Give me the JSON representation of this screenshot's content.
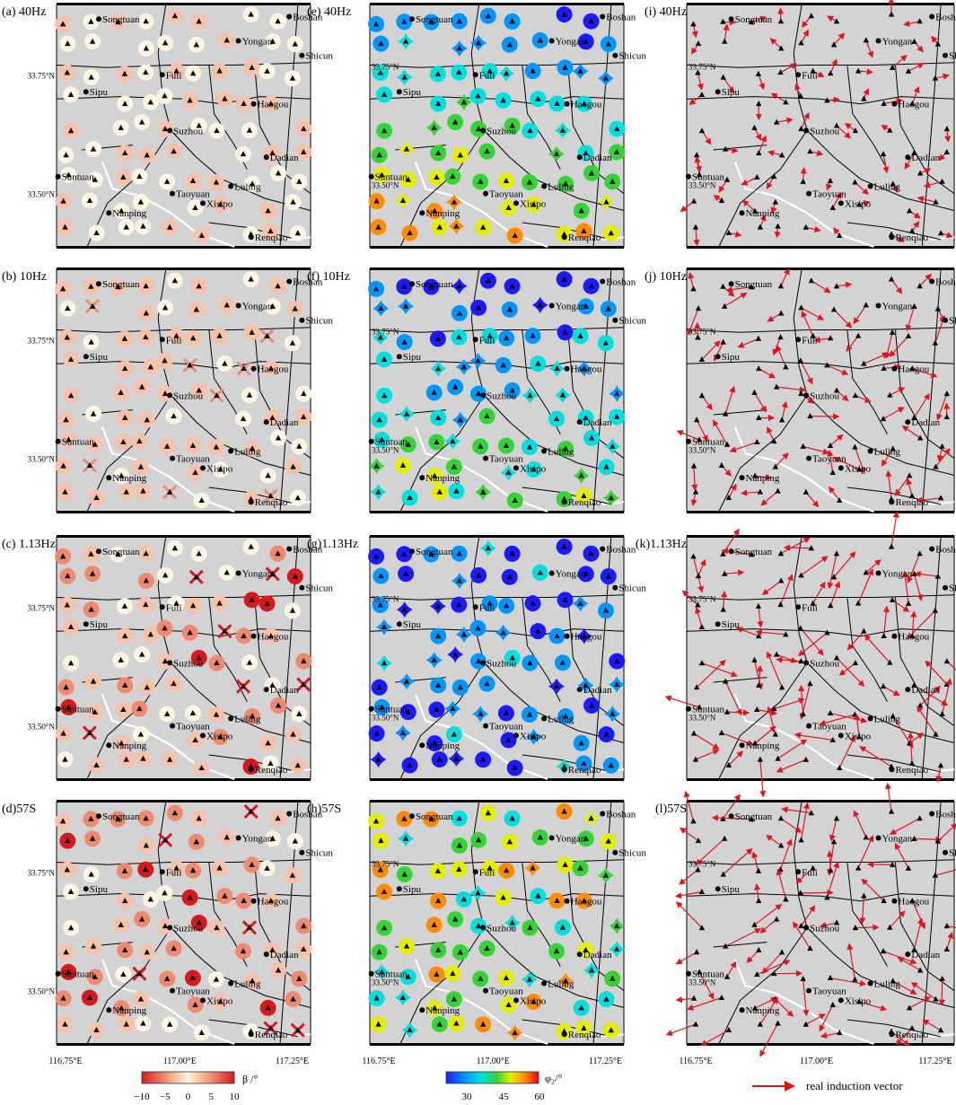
{
  "panels": [
    {
      "id": "a",
      "label": "(a) 40Hz",
      "kind": "beta",
      "col": 0,
      "row": 0
    },
    {
      "id": "b",
      "label": "(b) 10Hz",
      "kind": "beta",
      "col": 0,
      "row": 1
    },
    {
      "id": "c",
      "label": "(c) 1.13Hz",
      "kind": "beta",
      "col": 0,
      "row": 2
    },
    {
      "id": "d",
      "label": "(d)57S",
      "kind": "beta",
      "col": 0,
      "row": 3
    },
    {
      "id": "e",
      "label": "(e) 40Hz",
      "kind": "phi",
      "col": 1,
      "row": 0
    },
    {
      "id": "f",
      "label": "(f) 10Hz",
      "kind": "phi",
      "col": 1,
      "row": 1
    },
    {
      "id": "g",
      "label": "(g)1.13Hz",
      "kind": "phi",
      "col": 1,
      "row": 2
    },
    {
      "id": "h",
      "label": "(h)57S",
      "kind": "phi",
      "col": 1,
      "row": 3
    },
    {
      "id": "i",
      "label": "(i) 40Hz",
      "kind": "vector",
      "col": 2,
      "row": 0
    },
    {
      "id": "j",
      "label": "(j) 10Hz",
      "kind": "vector",
      "col": 2,
      "row": 1
    },
    {
      "id": "k",
      "label": "(k)1.13Hz",
      "kind": "vector",
      "col": 2,
      "row": 2
    },
    {
      "id": "l",
      "label": "(l)57S",
      "kind": "vector",
      "col": 2,
      "row": 3
    }
  ],
  "towns": [
    {
      "name": "Songtuan",
      "u": 0.18,
      "v": 0.06
    },
    {
      "name": "Boshan",
      "u": 0.93,
      "v": 0.05
    },
    {
      "name": "Yongan",
      "u": 0.73,
      "v": 0.15
    },
    {
      "name": "Shicun",
      "u": 0.98,
      "v": 0.21
    },
    {
      "name": "Fuli",
      "u": 0.43,
      "v": 0.29
    },
    {
      "name": "Sipu",
      "u": 0.13,
      "v": 0.36
    },
    {
      "name": "Haogou",
      "u": 0.79,
      "v": 0.41
    },
    {
      "name": "Suzhou",
      "u": 0.46,
      "v": 0.52
    },
    {
      "name": "Dadian",
      "u": 0.84,
      "v": 0.63
    },
    {
      "name": "Suntuan",
      "u": 0.02,
      "v": 0.71
    },
    {
      "name": "Luling",
      "u": 0.7,
      "v": 0.75
    },
    {
      "name": "Taoyuan",
      "u": 0.47,
      "v": 0.78
    },
    {
      "name": "Xisipo",
      "u": 0.59,
      "v": 0.82
    },
    {
      "name": "Nanping",
      "u": 0.22,
      "v": 0.86
    },
    {
      "name": "Renqiao",
      "u": 0.78,
      "v": 0.96
    }
  ],
  "axes": {
    "lat_ticks": [
      {
        "label": "33.75°N",
        "v": 0.29
      },
      {
        "label": "33.50°N",
        "v": 0.78
      }
    ],
    "lon_ticks": [
      {
        "label": "116.75°E",
        "u": 0.0
      },
      {
        "label": "117.00°E",
        "u": 0.5
      },
      {
        "label": "117.25°E",
        "u": 1.0
      }
    ]
  },
  "colorbars": {
    "beta": {
      "ticks": [
        "−10",
        "−5",
        "0",
        "5",
        "10"
      ],
      "label": "β /°"
    },
    "phi": {
      "ticks": [
        "30",
        "45",
        "60"
      ],
      "label": "φ₂/°"
    }
  },
  "vector_legend": "real induction vector",
  "colors": {
    "map_bg": "#d3d3d3",
    "fault": "#000000",
    "river": "#ffffff",
    "vector": "#e0141a",
    "station": "#000000"
  }
}
